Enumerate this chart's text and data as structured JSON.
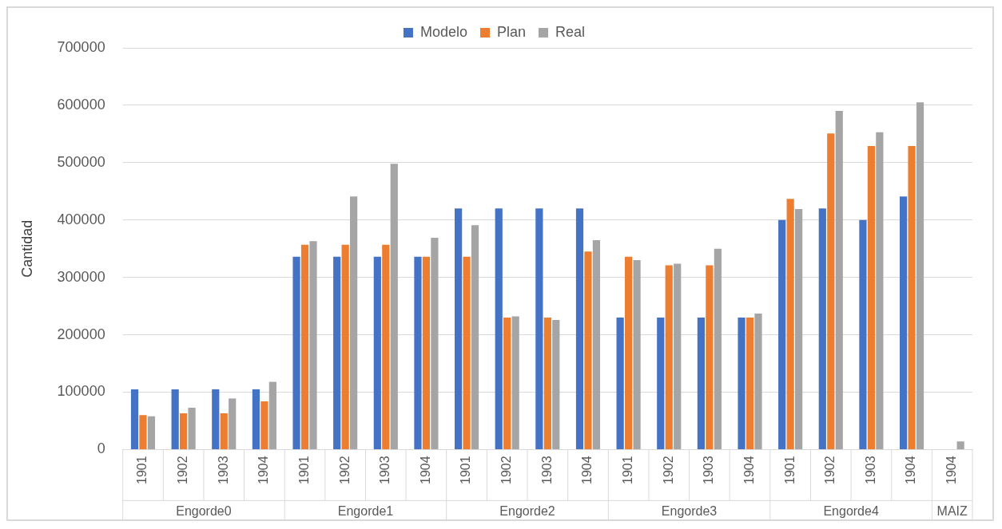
{
  "chart_data": {
    "type": "bar",
    "ylabel": "Cantidad",
    "categories": [
      "1901",
      "1902",
      "1903",
      "1904",
      "1901",
      "1902",
      "1903",
      "1904",
      "1901",
      "1902",
      "1903",
      "1904",
      "1901",
      "1902",
      "1903",
      "1904",
      "1901",
      "1902",
      "1903",
      "1904",
      "1904"
    ],
    "series": [
      {
        "name": "Modelo",
        "color": "#4472c4",
        "values": [
          105000,
          105000,
          105000,
          105000,
          336000,
          336000,
          336000,
          336000,
          420000,
          420000,
          420000,
          420000,
          230000,
          230000,
          230000,
          230000,
          400000,
          420000,
          400000,
          441000,
          null
        ]
      },
      {
        "name": "Plan",
        "color": "#ed7d31",
        "values": [
          60000,
          63000,
          63000,
          84000,
          357000,
          357000,
          357000,
          336000,
          336000,
          230000,
          230000,
          345000,
          336000,
          321000,
          321000,
          230000,
          437000,
          551000,
          529000,
          529000,
          null
        ]
      },
      {
        "name": "Real",
        "color": "#a5a5a5",
        "values": [
          58000,
          73000,
          89000,
          118000,
          363000,
          441000,
          498000,
          369000,
          391000,
          232000,
          226000,
          365000,
          330000,
          324000,
          350000,
          237000,
          419000,
          590000,
          553000,
          605000,
          14000
        ]
      }
    ],
    "annotations": [
      "Engorde0",
      "Engorde1",
      "Engorde2",
      "Engorde3",
      "Engorde4",
      "MAIZ"
    ],
    "ylim": [
      0,
      700000
    ],
    "yticks": [
      0,
      100000,
      200000,
      300000,
      400000,
      500000,
      600000,
      700000
    ],
    "grid": "y",
    "legend": "top"
  }
}
